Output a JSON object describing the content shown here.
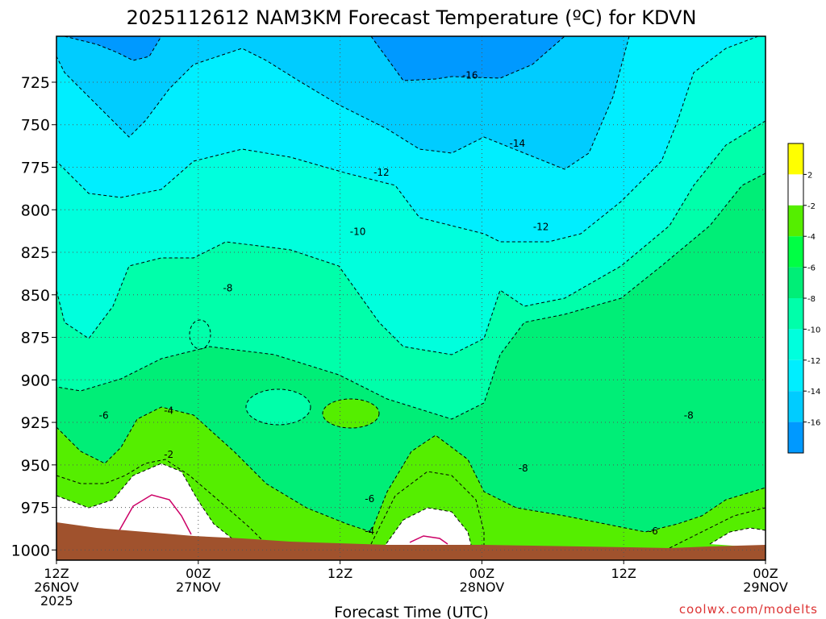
{
  "chart_data": {
    "type": "heatmap",
    "title": "2025112612 NAM3KM Forecast Temperature (ºC) for KDVN",
    "xlabel": "Forecast Time (UTC)",
    "ylabel": "",
    "credit": "coolwx.com/modelts",
    "x_ticks": [
      {
        "hours": 0,
        "lines": [
          "12Z",
          "26NOV",
          "2025"
        ]
      },
      {
        "hours": 12,
        "lines": [
          "00Z",
          "27NOV"
        ]
      },
      {
        "hours": 24,
        "lines": [
          "12Z"
        ]
      },
      {
        "hours": 36,
        "lines": [
          "00Z",
          "28NOV"
        ]
      },
      {
        "hours": 48,
        "lines": [
          "12Z"
        ]
      },
      {
        "hours": 60,
        "lines": [
          "00Z",
          "29NOV"
        ]
      }
    ],
    "xlim_hours": [
      0,
      60
    ],
    "y_ticks": [
      725,
      750,
      775,
      800,
      825,
      850,
      875,
      900,
      925,
      950,
      975,
      1000
    ],
    "ylim": [
      1006,
      698
    ],
    "grid": true,
    "colorbar": {
      "levels": [
        "2",
        "-2",
        "-4",
        "-6",
        "-8",
        "-10",
        "-12",
        "-14",
        "-16"
      ],
      "colors": [
        "#ffff00",
        "#ffffff",
        "#55ee00",
        "#00ff44",
        "#00ee77",
        "#00ffaa",
        "#00ffdd",
        "#00eeff",
        "#00ccff",
        "#0099ff"
      ]
    },
    "fill_colors": {
      "c16": "#0099ff",
      "c14": "#00ccff",
      "c12": "#00eeff",
      "c10": "#00ffdd",
      "c8": "#00ffaa",
      "c6": "#00ee77",
      "c4": "#55ee00",
      "c2": "#ffffff",
      "ground": "#a0522d",
      "zero_line": "#cc0066"
    },
    "contour_labels": [
      {
        "text": "-16",
        "hours": 35.0,
        "p": 721
      },
      {
        "text": "-14",
        "hours": 39.0,
        "p": 761
      },
      {
        "text": "-12",
        "hours": 27.5,
        "p": 778
      },
      {
        "text": "-12",
        "hours": 41.0,
        "p": 810
      },
      {
        "text": "-10",
        "hours": 25.5,
        "p": 813
      },
      {
        "text": "-8",
        "hours": 14.5,
        "p": 846
      },
      {
        "text": "-8",
        "hours": 39.5,
        "p": 952
      },
      {
        "text": "-8",
        "hours": 53.5,
        "p": 921
      },
      {
        "text": "-6",
        "hours": 4.0,
        "p": 921
      },
      {
        "text": "-6",
        "hours": 26.5,
        "p": 970
      },
      {
        "text": "-6",
        "hours": 50.5,
        "p": 989
      },
      {
        "text": "-4",
        "hours": 9.5,
        "p": 918
      },
      {
        "text": "-4",
        "hours": 26.5,
        "p": 989
      },
      {
        "text": "-2",
        "hours": 9.5,
        "p": 944
      }
    ]
  }
}
